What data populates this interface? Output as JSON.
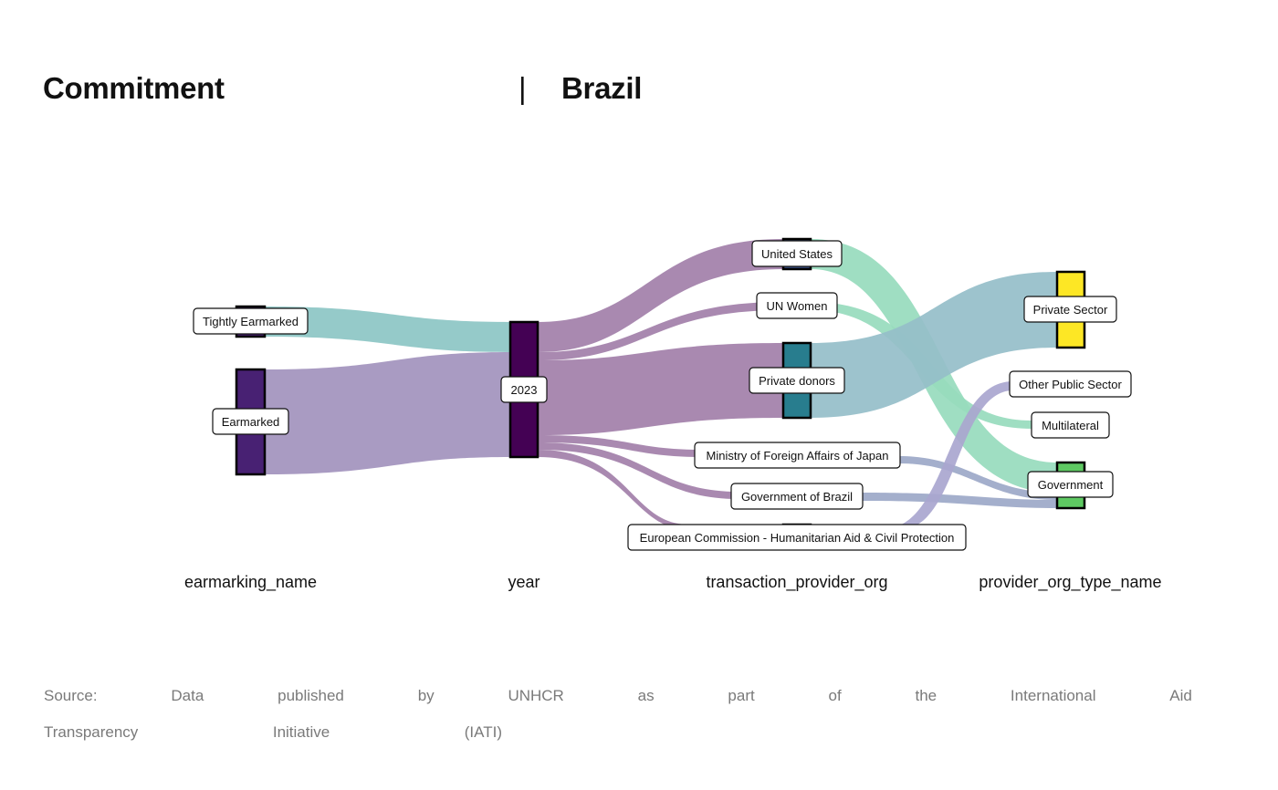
{
  "header": {
    "title_left": "Commitment",
    "separator": "|",
    "title_right": "Brazil"
  },
  "axes": [
    "earmarking_name",
    "year",
    "transaction_provider_org",
    "provider_org_type_name"
  ],
  "nodes": {
    "tightly_earmarked": {
      "label": "Tightly Earmarked",
      "color": "#482173"
    },
    "earmarked": {
      "label": "Earmarked",
      "color": "#482173"
    },
    "y2023": {
      "label": "2023",
      "color": "#440154"
    },
    "united_states": {
      "label": "United States",
      "color": "#3b528b"
    },
    "un_women": {
      "label": "UN Women",
      "color": "#31688e"
    },
    "private_donors": {
      "label": "Private donors",
      "color": "#287d8e"
    },
    "mofa_japan": {
      "label": "Ministry of Foreign Affairs of Japan",
      "color": "#3b528b"
    },
    "gov_brazil": {
      "label": "Government of Brazil",
      "color": "#3b528b"
    },
    "echo": {
      "label": "European Commission - Humanitarian Aid & Civil Protection",
      "color": "#3b528b"
    },
    "private_sector": {
      "label": "Private Sector",
      "color": "#fde725"
    },
    "other_public_sector": {
      "label": "Other Public Sector",
      "color": "#3e4989"
    },
    "multilateral": {
      "label": "Multilateral",
      "color": "#1f9e89"
    },
    "government": {
      "label": "Government",
      "color": "#5ec962"
    }
  },
  "link_colors": {
    "teal": "#8cc5c4",
    "lavender": "#a293bd",
    "mauve": "#a27fa9",
    "mint": "#97dbbd",
    "steel": "#95bec9",
    "slate": "#9ca8c8",
    "periwinkle": "#a9a6cf"
  },
  "source_words_line1": [
    "Source:",
    "Data",
    "published",
    "by",
    "UNHCR",
    "as",
    "part",
    "of",
    "the",
    "International",
    "Aid"
  ],
  "source_words_line2": [
    "Transparency",
    "Initiative",
    "(IATI)"
  ]
}
